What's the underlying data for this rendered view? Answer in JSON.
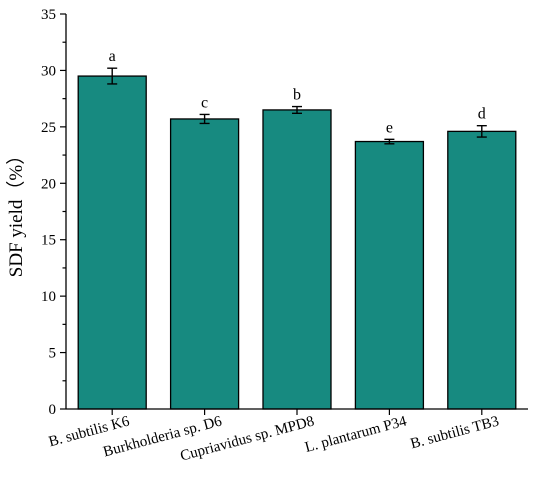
{
  "chart_data": {
    "type": "bar",
    "categories": [
      "B. subtilis K6",
      "Burkholderia sp. D6",
      "Cupriavidus sp. MPD8",
      "L. plantarum P34",
      "B. subtilis TB3"
    ],
    "values": [
      29.5,
      25.7,
      26.5,
      23.7,
      24.6
    ],
    "errors": [
      0.7,
      0.4,
      0.3,
      0.2,
      0.5
    ],
    "significance": [
      "a",
      "c",
      "b",
      "e",
      "d"
    ],
    "title": "",
    "xlabel": "",
    "ylabel": "SDF yield（%）",
    "ylim": [
      0,
      35
    ],
    "yticks": [
      0,
      5,
      10,
      15,
      20,
      25,
      30,
      35
    ],
    "bar_color": "#178a80",
    "grid": false,
    "legend": "none"
  }
}
